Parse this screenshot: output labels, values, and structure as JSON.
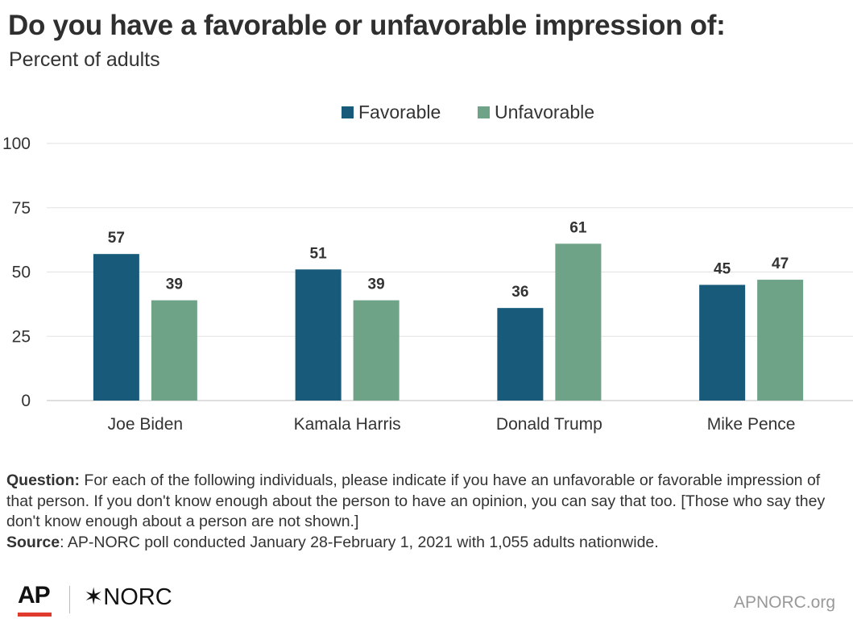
{
  "header": {
    "title": "Do you have a favorable or unfavorable impression of:",
    "subtitle": "Percent of adults"
  },
  "chart_data": {
    "type": "bar",
    "categories": [
      "Joe Biden",
      "Kamala Harris",
      "Donald Trump",
      "Mike Pence"
    ],
    "series": [
      {
        "name": "Favorable",
        "values": [
          57,
          51,
          36,
          45
        ],
        "color": "#175a7a"
      },
      {
        "name": "Unfavorable",
        "values": [
          39,
          39,
          61,
          47
        ],
        "color": "#6ea387"
      }
    ],
    "y_ticks": [
      0,
      25,
      50,
      75,
      100
    ],
    "ylim": [
      0,
      100
    ],
    "grid": true,
    "legend_position": "top-center",
    "data_labels": true
  },
  "footer": {
    "question_label": "Question:",
    "question_text": " For each of the following individuals, please indicate if you have an unfavorable or favorable impression of that person. If you don't know enough about the person to have an opinion, you can say that too. [Those who say they don't know enough about a person are not shown.]",
    "source_label": "Source",
    "source_text": ": AP-NORC poll conducted January 28-February 1, 2021 with 1,055 adults nationwide.",
    "logo_ap": "AP",
    "logo_norc": "✶NORC",
    "site": "APNORC.org"
  }
}
